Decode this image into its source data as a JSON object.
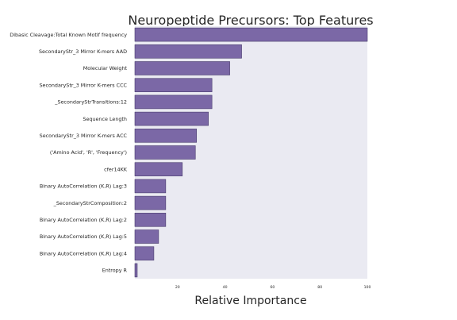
{
  "chart_data": {
    "type": "bar",
    "orientation": "horizontal",
    "title": "Neuropeptide Precursors: Top Features",
    "xlabel": "Relative Importance",
    "ylabel": "",
    "xlim": [
      2,
      100
    ],
    "xticks": [
      "20",
      "40",
      "60",
      "80",
      "100"
    ],
    "grid": false,
    "colors": {
      "bar": "#7b68a6",
      "bar_edge": "#4a3d6e",
      "plot_bg": "#eaeaf2"
    },
    "categories": [
      "Dibasic Cleavage:Total Known Motif frequency",
      "SecondaryStr_3 Mirror K-mers AAD",
      "Molecular Weight",
      "SecondaryStr_3 Mirror K-mers CCC",
      "_SecondaryStrTransitions:12",
      "Sequence Length",
      "SecondaryStr_3 Mirror K-mers ACC",
      "('Amino Acid', 'R', 'Frequency')",
      "cfer14KK",
      "Binary AutoCorrelation (K,R) Lag:3",
      "_SecondaryStrComposition:2",
      "Binary AutoCorrelation (K,R) Lag:2",
      "Binary AutoCorrelation (K,R) Lag:5",
      "Binary AutoCorrelation (K,R) Lag:4",
      "Entropy R"
    ],
    "values": [
      100,
      47,
      42,
      34.5,
      34.5,
      33,
      28,
      27.5,
      22,
      15,
      15,
      15,
      12,
      10,
      3
    ]
  }
}
